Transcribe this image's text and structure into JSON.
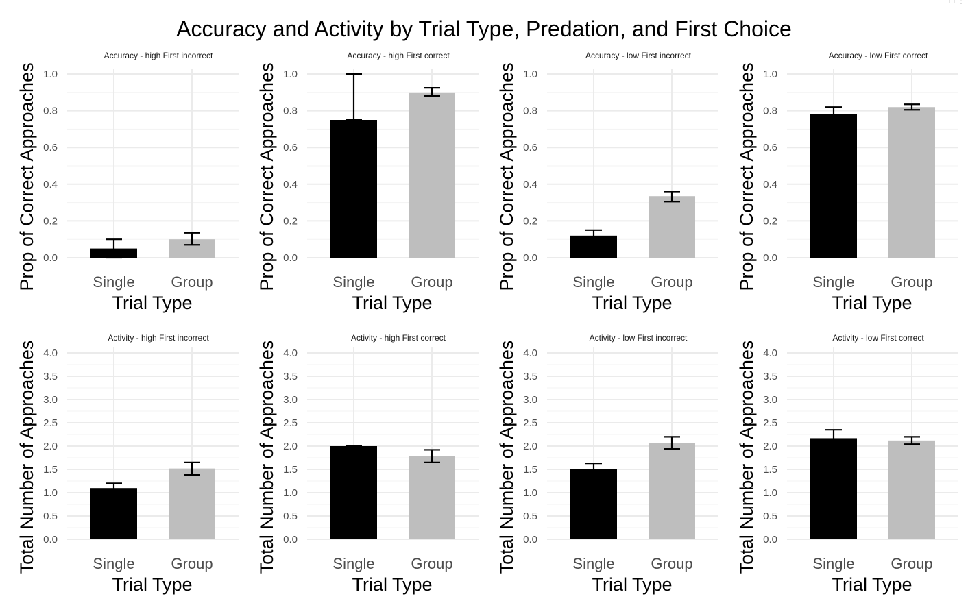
{
  "figure": {
    "title": "Accuracy and Activity by Trial Type, Predation, and First Choice"
  },
  "colors": {
    "Single": "#000000",
    "Group": "#bebebe"
  },
  "chart_data": [
    {
      "type": "bar",
      "title": "Accuracy - high First incorrect",
      "xlabel": "Trial Type",
      "ylabel": "Prop of Correct Approaches",
      "categories": [
        "Single",
        "Group"
      ],
      "values": [
        0.05,
        0.1
      ],
      "error_low": [
        0.0,
        0.07
      ],
      "error_high": [
        0.1,
        0.135
      ],
      "ylim": [
        0,
        1.0
      ],
      "yticks": [
        "0.0",
        "0.2",
        "0.4",
        "0.6",
        "0.8",
        "1.0"
      ],
      "ytick_values": [
        0,
        0.2,
        0.4,
        0.6,
        0.8,
        1.0
      ]
    },
    {
      "type": "bar",
      "title": "Accuracy - high First correct",
      "xlabel": "Trial Type",
      "ylabel": "Prop of Correct Approaches",
      "categories": [
        "Single",
        "Group"
      ],
      "values": [
        0.75,
        0.9
      ],
      "error_low": [
        0.75,
        0.88
      ],
      "error_high": [
        1.0,
        0.925
      ],
      "ylim": [
        0,
        1.0
      ],
      "yticks": [
        "0.0",
        "0.2",
        "0.4",
        "0.6",
        "0.8",
        "1.0"
      ],
      "ytick_values": [
        0,
        0.2,
        0.4,
        0.6,
        0.8,
        1.0
      ]
    },
    {
      "type": "bar",
      "title": "Accuracy - low First incorrect",
      "xlabel": "Trial Type",
      "ylabel": "Prop of Correct Approaches",
      "categories": [
        "Single",
        "Group"
      ],
      "values": [
        0.12,
        0.335
      ],
      "error_low": [
        0.09,
        0.305
      ],
      "error_high": [
        0.15,
        0.36
      ],
      "ylim": [
        0,
        1.0
      ],
      "yticks": [
        "0.0",
        "0.2",
        "0.4",
        "0.6",
        "0.8",
        "1.0"
      ],
      "ytick_values": [
        0,
        0.2,
        0.4,
        0.6,
        0.8,
        1.0
      ]
    },
    {
      "type": "bar",
      "title": "Accuracy - low First correct",
      "xlabel": "Trial Type",
      "ylabel": "Prop of Correct Approaches",
      "categories": [
        "Single",
        "Group"
      ],
      "values": [
        0.78,
        0.82
      ],
      "error_low": [
        0.74,
        0.805
      ],
      "error_high": [
        0.82,
        0.835
      ],
      "ylim": [
        0,
        1.0
      ],
      "yticks": [
        "0.0",
        "0.2",
        "0.4",
        "0.6",
        "0.8",
        "1.0"
      ],
      "ytick_values": [
        0,
        0.2,
        0.4,
        0.6,
        0.8,
        1.0
      ]
    },
    {
      "type": "bar",
      "title": "Activity - high First incorrect",
      "xlabel": "Trial Type",
      "ylabel": "Total Number of Approaches",
      "categories": [
        "Single",
        "Group"
      ],
      "values": [
        1.1,
        1.52
      ],
      "error_low": [
        1.0,
        1.38
      ],
      "error_high": [
        1.2,
        1.65
      ],
      "ylim": [
        0,
        4.0
      ],
      "yticks": [
        "0.0",
        "0.5",
        "1.0",
        "1.5",
        "2.0",
        "2.5",
        "3.0",
        "3.5",
        "4.0"
      ],
      "ytick_values": [
        0,
        0.5,
        1.0,
        1.5,
        2.0,
        2.5,
        3.0,
        3.5,
        4.0
      ]
    },
    {
      "type": "bar",
      "title": "Activity - high First correct",
      "xlabel": "Trial Type",
      "ylabel": "Total Number of Approaches",
      "categories": [
        "Single",
        "Group"
      ],
      "values": [
        2.0,
        1.78
      ],
      "error_low": [
        1.99,
        1.65
      ],
      "error_high": [
        2.01,
        1.92
      ],
      "ylim": [
        0,
        4.0
      ],
      "yticks": [
        "0.0",
        "0.5",
        "1.0",
        "1.5",
        "2.0",
        "2.5",
        "3.0",
        "3.5",
        "4.0"
      ],
      "ytick_values": [
        0,
        0.5,
        1.0,
        1.5,
        2.0,
        2.5,
        3.0,
        3.5,
        4.0
      ]
    },
    {
      "type": "bar",
      "title": "Activity - low First incorrect",
      "xlabel": "Trial Type",
      "ylabel": "Total Number of Approaches",
      "categories": [
        "Single",
        "Group"
      ],
      "values": [
        1.5,
        2.07
      ],
      "error_low": [
        1.37,
        1.94
      ],
      "error_high": [
        1.63,
        2.2
      ],
      "ylim": [
        0,
        4.0
      ],
      "yticks": [
        "0.0",
        "0.5",
        "1.0",
        "1.5",
        "2.0",
        "2.5",
        "3.0",
        "3.5",
        "4.0"
      ],
      "ytick_values": [
        0,
        0.5,
        1.0,
        1.5,
        2.0,
        2.5,
        3.0,
        3.5,
        4.0
      ]
    },
    {
      "type": "bar",
      "title": "Activity - low First correct",
      "xlabel": "Trial Type",
      "ylabel": "Total Number of Approaches",
      "categories": [
        "Single",
        "Group"
      ],
      "values": [
        2.17,
        2.12
      ],
      "error_low": [
        1.99,
        2.04
      ],
      "error_high": [
        2.35,
        2.2
      ],
      "ylim": [
        0,
        4.0
      ],
      "yticks": [
        "0.0",
        "0.5",
        "1.0",
        "1.5",
        "2.0",
        "2.5",
        "3.0",
        "3.5",
        "4.0"
      ],
      "ytick_values": [
        0,
        0.5,
        1.0,
        1.5,
        2.0,
        2.5,
        3.0,
        3.5,
        4.0
      ]
    }
  ]
}
